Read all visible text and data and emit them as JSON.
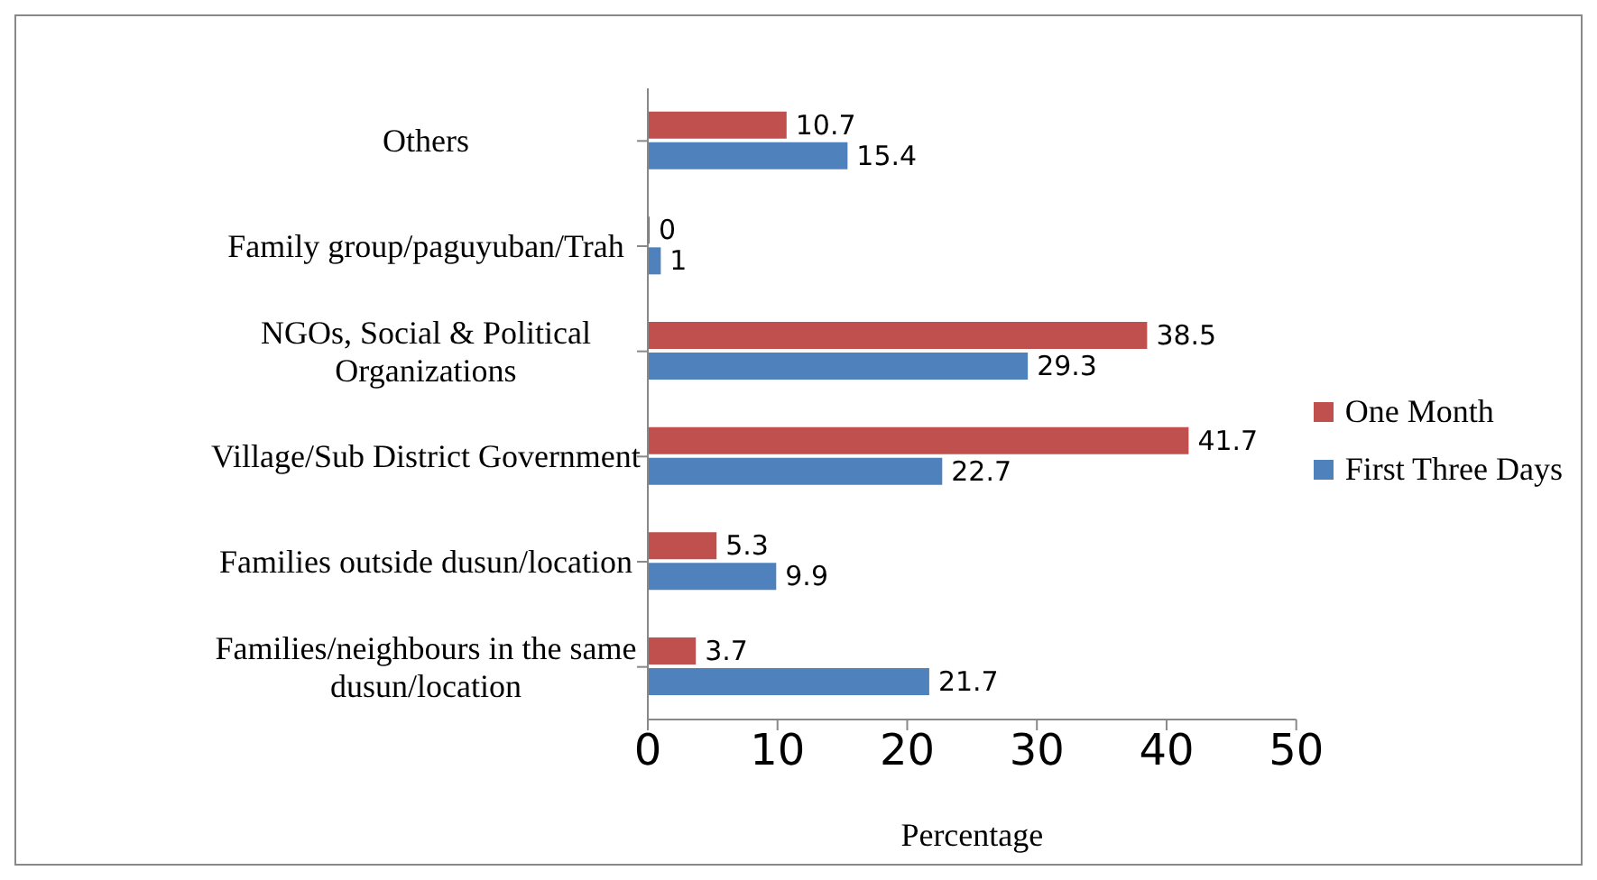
{
  "chart_data": {
    "type": "bar",
    "orientation": "horizontal",
    "xlabel": "Percentage",
    "categories": [
      "Others",
      "Family group/paguyuban/Trah",
      "NGOs, Social & Political Organizations",
      "Village/Sub District Government",
      "Families outside dusun/location",
      "Families/neighbours in the same dusun/location"
    ],
    "series": [
      {
        "name": "One Month",
        "color": "#c0504d",
        "values": [
          10.7,
          0,
          38.5,
          41.7,
          5.3,
          3.7
        ]
      },
      {
        "name": "First Three Days",
        "color": "#4f81bd",
        "values": [
          15.4,
          1,
          29.3,
          22.7,
          9.9,
          21.7
        ]
      }
    ],
    "xlim": [
      0,
      50
    ],
    "xticks": [
      0,
      10,
      20,
      30,
      40,
      50
    ],
    "data_labels": true,
    "legend": "right",
    "grid": false
  }
}
